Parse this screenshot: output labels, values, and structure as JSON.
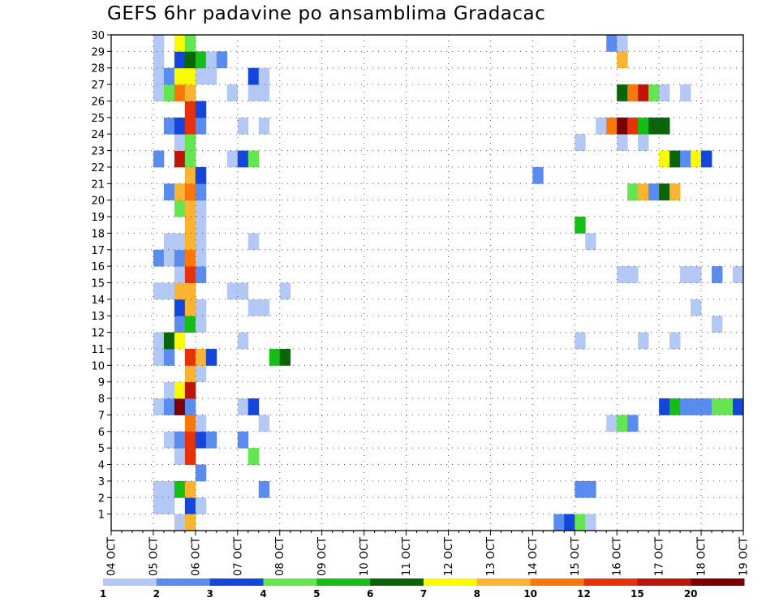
{
  "chart_data": {
    "type": "heatmap",
    "title": "GEFS 6hr padavine po ansamblima Gradacac",
    "x_tick_labels": [
      "04 OCT",
      "05 OCT",
      "06 OCT",
      "07 OCT",
      "08 OCT",
      "09 OCT",
      "10 OCT",
      "11 OCT",
      "12 OCT",
      "13 OCT",
      "14 OCT",
      "15 OCT",
      "16 OCT",
      "17 OCT",
      "18 OCT",
      "19 OCT"
    ],
    "y_tick_labels": [
      "1",
      "2",
      "3",
      "4",
      "5",
      "6",
      "7",
      "8",
      "9",
      "10",
      "11",
      "12",
      "13",
      "14",
      "15",
      "16",
      "17",
      "18",
      "19",
      "20",
      "21",
      "22",
      "23",
      "24",
      "25",
      "26",
      "27",
      "28",
      "29",
      "30"
    ],
    "xlim": [
      "04 OCT",
      "19 OCT"
    ],
    "ylim": [
      0,
      30
    ],
    "grid": true,
    "color_bins": [
      {
        "from": 1,
        "to": 2,
        "color": "#b4c8f5"
      },
      {
        "from": 2,
        "to": 3,
        "color": "#5a8cf0"
      },
      {
        "from": 3,
        "to": 4,
        "color": "#1446dc"
      },
      {
        "from": 4,
        "to": 5,
        "color": "#64e650"
      },
      {
        "from": 5,
        "to": 6,
        "color": "#14be14"
      },
      {
        "from": 6,
        "to": 7,
        "color": "#0a640a"
      },
      {
        "from": 7,
        "to": 8,
        "color": "#fafa00"
      },
      {
        "from": 8,
        "to": 10,
        "color": "#fab432"
      },
      {
        "from": 10,
        "to": 12,
        "color": "#fa780a"
      },
      {
        "from": 12,
        "to": 15,
        "color": "#e6320a"
      },
      {
        "from": 15,
        "to": 20,
        "color": "#be140a"
      },
      {
        "from": 20,
        "to": null,
        "color": "#780000"
      }
    ],
    "colorbar_labels": [
      "1",
      "2",
      "3",
      "4",
      "5",
      "6",
      "7",
      "8",
      "10",
      "12",
      "15",
      "20"
    ],
    "cells": [
      [
        "05 OCT 00Z",
        1,
        "#b4c8f5"
      ],
      [
        "05 OCT 06Z",
        1,
        "#b4c8f5"
      ],
      [
        "05 OCT 18Z",
        1,
        "#1446dc"
      ],
      [
        "06 OCT 00Z",
        1,
        "#b4c8f5"
      ],
      [
        "05 OCT 00Z",
        2,
        "#b4c8f5"
      ],
      [
        "05 OCT 06Z",
        2,
        "#b4c8f5"
      ],
      [
        "05 OCT 12Z",
        2,
        "#14be14"
      ],
      [
        "05 OCT 18Z",
        2,
        "#fab432"
      ],
      [
        "07 OCT 12Z",
        2,
        "#5a8cf0"
      ],
      [
        "15 OCT 00Z",
        2,
        "#5a8cf0"
      ],
      [
        "15 OCT 06Z",
        2,
        "#5a8cf0"
      ],
      [
        "06 OCT 00Z",
        3,
        "#5a8cf0"
      ],
      [
        "05 OCT 12Z",
        4,
        "#b4c8f5"
      ],
      [
        "05 OCT 18Z",
        4,
        "#e6320a"
      ],
      [
        "07 OCT 06Z",
        4,
        "#64e650"
      ],
      [
        "05 OCT 06Z",
        5,
        "#b4c8f5"
      ],
      [
        "05 OCT 12Z",
        5,
        "#5a8cf0"
      ],
      [
        "05 OCT 18Z",
        5,
        "#e6320a"
      ],
      [
        "06 OCT 00Z",
        5,
        "#1446dc"
      ],
      [
        "06 OCT 06Z",
        5,
        "#5a8cf0"
      ],
      [
        "07 OCT 00Z",
        5,
        "#5a8cf0"
      ],
      [
        "05 OCT 18Z",
        6,
        "#fa780a"
      ],
      [
        "06 OCT 00Z",
        6,
        "#b4c8f5"
      ],
      [
        "07 OCT 12Z",
        6,
        "#b4c8f5"
      ],
      [
        "15 OCT 18Z",
        6,
        "#b4c8f5"
      ],
      [
        "16 OCT 00Z",
        6,
        "#64e650"
      ],
      [
        "16 OCT 06Z",
        6,
        "#5a8cf0"
      ],
      [
        "05 OCT 00Z",
        7,
        "#b4c8f5"
      ],
      [
        "05 OCT 06Z",
        7,
        "#5a8cf0"
      ],
      [
        "05 OCT 12Z",
        7,
        "#780000"
      ],
      [
        "05 OCT 18Z",
        7,
        "#5a8cf0"
      ],
      [
        "07 OCT 00Z",
        7,
        "#b4c8f5"
      ],
      [
        "07 OCT 06Z",
        7,
        "#1446dc"
      ],
      [
        "17 OCT 00Z",
        7,
        "#1446dc"
      ],
      [
        "17 OCT 06Z",
        7,
        "#14be14"
      ],
      [
        "17 OCT 12Z",
        7,
        "#5a8cf0"
      ],
      [
        "17 OCT 18Z",
        7,
        "#5a8cf0"
      ],
      [
        "18 OCT 00Z",
        7,
        "#5a8cf0"
      ],
      [
        "18 OCT 06Z",
        7,
        "#64e650"
      ],
      [
        "18 OCT 12Z",
        7,
        "#64e650"
      ],
      [
        "18 OCT 18Z",
        7,
        "#1446dc"
      ],
      [
        "05 OCT 06Z",
        8,
        "#b4c8f5"
      ],
      [
        "05 OCT 12Z",
        8,
        "#fafa00"
      ],
      [
        "05 OCT 18Z",
        8,
        "#be140a"
      ],
      [
        "05 OCT 18Z",
        9,
        "#fab432"
      ],
      [
        "06 OCT 00Z",
        9,
        "#b4c8f5"
      ],
      [
        "05 OCT 00Z",
        10,
        "#b4c8f5"
      ],
      [
        "05 OCT 06Z",
        10,
        "#5a8cf0"
      ],
      [
        "05 OCT 18Z",
        10,
        "#e6320a"
      ],
      [
        "06 OCT 00Z",
        10,
        "#fab432"
      ],
      [
        "06 OCT 06Z",
        10,
        "#1446dc"
      ],
      [
        "07 OCT 18Z",
        10,
        "#14be14"
      ],
      [
        "08 OCT 00Z",
        10,
        "#0a640a"
      ],
      [
        "05 OCT 00Z",
        11,
        "#b4c8f5"
      ],
      [
        "05 OCT 06Z",
        11,
        "#0a640a"
      ],
      [
        "05 OCT 12Z",
        11,
        "#fafa00"
      ],
      [
        "07 OCT 00Z",
        11,
        "#b4c8f5"
      ],
      [
        "15 OCT 00Z",
        11,
        "#b4c8f5"
      ],
      [
        "16 OCT 12Z",
        11,
        "#b4c8f5"
      ],
      [
        "17 OCT 06Z",
        11,
        "#b4c8f5"
      ],
      [
        "05 OCT 12Z",
        12,
        "#5a8cf0"
      ],
      [
        "05 OCT 18Z",
        12,
        "#14be14"
      ],
      [
        "06 OCT 00Z",
        12,
        "#b4c8f5"
      ],
      [
        "18 OCT 06Z",
        12,
        "#b4c8f5"
      ],
      [
        "05 OCT 12Z",
        13,
        "#1446dc"
      ],
      [
        "05 OCT 18Z",
        13,
        "#fab432"
      ],
      [
        "06 OCT 00Z",
        13,
        "#b4c8f5"
      ],
      [
        "07 OCT 06Z",
        13,
        "#b4c8f5"
      ],
      [
        "07 OCT 12Z",
        13,
        "#b4c8f5"
      ],
      [
        "17 OCT 18Z",
        13,
        "#b4c8f5"
      ],
      [
        "05 OCT 00Z",
        14,
        "#b4c8f5"
      ],
      [
        "05 OCT 06Z",
        14,
        "#b4c8f5"
      ],
      [
        "05 OCT 12Z",
        14,
        "#fab432"
      ],
      [
        "05 OCT 18Z",
        14,
        "#fab432"
      ],
      [
        "06 OCT 18Z",
        14,
        "#b4c8f5"
      ],
      [
        "07 OCT 00Z",
        14,
        "#b4c8f5"
      ],
      [
        "08 OCT 00Z",
        14,
        "#b4c8f5"
      ],
      [
        "05 OCT 12Z",
        15,
        "#b4c8f5"
      ],
      [
        "05 OCT 18Z",
        15,
        "#e6320a"
      ],
      [
        "06 OCT 00Z",
        15,
        "#5a8cf0"
      ],
      [
        "16 OCT 00Z",
        15,
        "#b4c8f5"
      ],
      [
        "16 OCT 06Z",
        15,
        "#b4c8f5"
      ],
      [
        "17 OCT 12Z",
        15,
        "#b4c8f5"
      ],
      [
        "17 OCT 18Z",
        15,
        "#b4c8f5"
      ],
      [
        "18 OCT 06Z",
        15,
        "#5a8cf0"
      ],
      [
        "18 OCT 18Z",
        15,
        "#b4c8f5"
      ],
      [
        "05 OCT 00Z",
        16,
        "#5a8cf0"
      ],
      [
        "05 OCT 06Z",
        16,
        "#b4c8f5"
      ],
      [
        "05 OCT 12Z",
        16,
        "#5a8cf0"
      ],
      [
        "05 OCT 18Z",
        16,
        "#fa780a"
      ],
      [
        "06 OCT 00Z",
        16,
        "#b4c8f5"
      ],
      [
        "05 OCT 06Z",
        17,
        "#b4c8f5"
      ],
      [
        "05 OCT 12Z",
        17,
        "#b4c8f5"
      ],
      [
        "05 OCT 18Z",
        17,
        "#fab432"
      ],
      [
        "06 OCT 00Z",
        17,
        "#b4c8f5"
      ],
      [
        "07 OCT 06Z",
        17,
        "#b4c8f5"
      ],
      [
        "15 OCT 06Z",
        17,
        "#b4c8f5"
      ],
      [
        "05 OCT 18Z",
        18,
        "#fab432"
      ],
      [
        "06 OCT 00Z",
        18,
        "#b4c8f5"
      ],
      [
        "15 OCT 00Z",
        18,
        "#14be14"
      ],
      [
        "05 OCT 12Z",
        19,
        "#64e650"
      ],
      [
        "05 OCT 18Z",
        19,
        "#fab432"
      ],
      [
        "06 OCT 00Z",
        19,
        "#b4c8f5"
      ],
      [
        "05 OCT 06Z",
        20,
        "#5a8cf0"
      ],
      [
        "05 OCT 12Z",
        20,
        "#fab432"
      ],
      [
        "05 OCT 18Z",
        20,
        "#fa780a"
      ],
      [
        "06 OCT 00Z",
        20,
        "#5a8cf0"
      ],
      [
        "16 OCT 06Z",
        20,
        "#64e650"
      ],
      [
        "16 OCT 12Z",
        20,
        "#fab432"
      ],
      [
        "16 OCT 18Z",
        20,
        "#5a8cf0"
      ],
      [
        "17 OCT 00Z",
        20,
        "#0a640a"
      ],
      [
        "17 OCT 06Z",
        20,
        "#fab432"
      ],
      [
        "05 OCT 18Z",
        21,
        "#fab432"
      ],
      [
        "06 OCT 00Z",
        21,
        "#1446dc"
      ],
      [
        "14 OCT 00Z",
        21,
        "#5a8cf0"
      ],
      [
        "05 OCT 00Z",
        22,
        "#5a8cf0"
      ],
      [
        "05 OCT 12Z",
        22,
        "#be140a"
      ],
      [
        "05 OCT 18Z",
        22,
        "#64e650"
      ],
      [
        "06 OCT 18Z",
        22,
        "#b4c8f5"
      ],
      [
        "07 OCT 00Z",
        22,
        "#1446dc"
      ],
      [
        "07 OCT 06Z",
        22,
        "#64e650"
      ],
      [
        "17 OCT 00Z",
        22,
        "#fafa00"
      ],
      [
        "17 OCT 06Z",
        22,
        "#0a640a"
      ],
      [
        "17 OCT 12Z",
        22,
        "#5a8cf0"
      ],
      [
        "17 OCT 18Z",
        22,
        "#fafa00"
      ],
      [
        "18 OCT 00Z",
        22,
        "#1446dc"
      ],
      [
        "05 OCT 12Z",
        23,
        "#b4c8f5"
      ],
      [
        "05 OCT 18Z",
        23,
        "#64e650"
      ],
      [
        "15 OCT 00Z",
        23,
        "#b4c8f5"
      ],
      [
        "16 OCT 00Z",
        23,
        "#b4c8f5"
      ],
      [
        "16 OCT 12Z",
        23,
        "#b4c8f5"
      ],
      [
        "05 OCT 06Z",
        24,
        "#5a8cf0"
      ],
      [
        "05 OCT 12Z",
        24,
        "#1446dc"
      ],
      [
        "05 OCT 18Z",
        24,
        "#e6320a"
      ],
      [
        "06 OCT 00Z",
        24,
        "#5a8cf0"
      ],
      [
        "07 OCT 00Z",
        24,
        "#b4c8f5"
      ],
      [
        "07 OCT 12Z",
        24,
        "#b4c8f5"
      ],
      [
        "15 OCT 12Z",
        24,
        "#b4c8f5"
      ],
      [
        "15 OCT 18Z",
        24,
        "#fa780a"
      ],
      [
        "16 OCT 00Z",
        24,
        "#780000"
      ],
      [
        "16 OCT 06Z",
        24,
        "#e6320a"
      ],
      [
        "16 OCT 12Z",
        24,
        "#14be14"
      ],
      [
        "16 OCT 18Z",
        24,
        "#0a640a"
      ],
      [
        "17 OCT 00Z",
        24,
        "#0a640a"
      ],
      [
        "05 OCT 18Z",
        25,
        "#e6320a"
      ],
      [
        "06 OCT 00Z",
        25,
        "#1446dc"
      ],
      [
        "05 OCT 00Z",
        26,
        "#b4c8f5"
      ],
      [
        "05 OCT 06Z",
        26,
        "#64e650"
      ],
      [
        "05 OCT 12Z",
        26,
        "#fa780a"
      ],
      [
        "05 OCT 18Z",
        26,
        "#fab432"
      ],
      [
        "06 OCT 18Z",
        26,
        "#b4c8f5"
      ],
      [
        "07 OCT 06Z",
        26,
        "#b4c8f5"
      ],
      [
        "07 OCT 12Z",
        26,
        "#b4c8f5"
      ],
      [
        "16 OCT 00Z",
        26,
        "#0a640a"
      ],
      [
        "16 OCT 06Z",
        26,
        "#fa780a"
      ],
      [
        "16 OCT 12Z",
        26,
        "#be140a"
      ],
      [
        "16 OCT 18Z",
        26,
        "#64e650"
      ],
      [
        "17 OCT 00Z",
        26,
        "#b4c8f5"
      ],
      [
        "17 OCT 12Z",
        26,
        "#b4c8f5"
      ],
      [
        "05 OCT 00Z",
        27,
        "#b4c8f5"
      ],
      [
        "05 OCT 06Z",
        27,
        "#5a8cf0"
      ],
      [
        "05 OCT 12Z",
        27,
        "#fafa00"
      ],
      [
        "05 OCT 18Z",
        27,
        "#fafa00"
      ],
      [
        "06 OCT 00Z",
        27,
        "#b4c8f5"
      ],
      [
        "06 OCT 06Z",
        27,
        "#b4c8f5"
      ],
      [
        "07 OCT 06Z",
        27,
        "#1446dc"
      ],
      [
        "07 OCT 12Z",
        27,
        "#b4c8f5"
      ],
      [
        "05 OCT 00Z",
        28,
        "#b4c8f5"
      ],
      [
        "05 OCT 12Z",
        28,
        "#1446dc"
      ],
      [
        "05 OCT 18Z",
        28,
        "#0a640a"
      ],
      [
        "06 OCT 00Z",
        28,
        "#14be14"
      ],
      [
        "06 OCT 06Z",
        28,
        "#b4c8f5"
      ],
      [
        "06 OCT 12Z",
        28,
        "#5a8cf0"
      ],
      [
        "16 OCT 00Z",
        28,
        "#fab432"
      ],
      [
        "05 OCT 00Z",
        29,
        "#b4c8f5"
      ],
      [
        "05 OCT 12Z",
        29,
        "#fafa00"
      ],
      [
        "05 OCT 18Z",
        29,
        "#64e650"
      ],
      [
        "15 OCT 18Z",
        29,
        "#5a8cf0"
      ],
      [
        "16 OCT 00Z",
        29,
        "#b4c8f5"
      ],
      [
        "05 OCT 06Z",
        30,
        "#b4c8f5"
      ],
      [
        "05 OCT 12Z",
        30,
        "#5a8cf0"
      ],
      [
        "05 OCT 18Z",
        30,
        "#780000"
      ],
      [
        "06 OCT 00Z",
        30,
        "#5a8cf0"
      ],
      [
        "06 OCT 06Z",
        30,
        "#b4c8f5"
      ],
      [
        "06 OCT 12Z",
        30,
        "#b4c8f5"
      ],
      [
        "07 OCT 12Z",
        30,
        "#b4c8f5"
      ],
      [
        "08 OCT 12Z",
        30,
        "#b4c8f5"
      ],
      [
        "05 OCT 12Z",
        0,
        "#b4c8f5"
      ],
      [
        "05 OCT 18Z",
        0,
        "#fab432"
      ],
      [
        "14 OCT 12Z",
        0,
        "#5a8cf0"
      ],
      [
        "14 OCT 18Z",
        0,
        "#1446dc"
      ],
      [
        "15 OCT 00Z",
        0,
        "#64e650"
      ],
      [
        "15 OCT 06Z",
        0,
        "#b4c8f5"
      ]
    ]
  }
}
